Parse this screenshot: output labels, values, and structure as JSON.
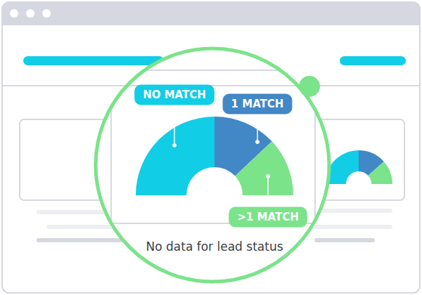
{
  "chart_data": {
    "type": "pie",
    "categories": [
      "NO MATCH",
      "1 MATCH",
      ">1 MATCH"
    ],
    "values": [
      50,
      26,
      24
    ],
    "colors": [
      "#12cde6",
      "#4287c6",
      "#7be38a"
    ],
    "annotation": "No data for lead status"
  }
}
